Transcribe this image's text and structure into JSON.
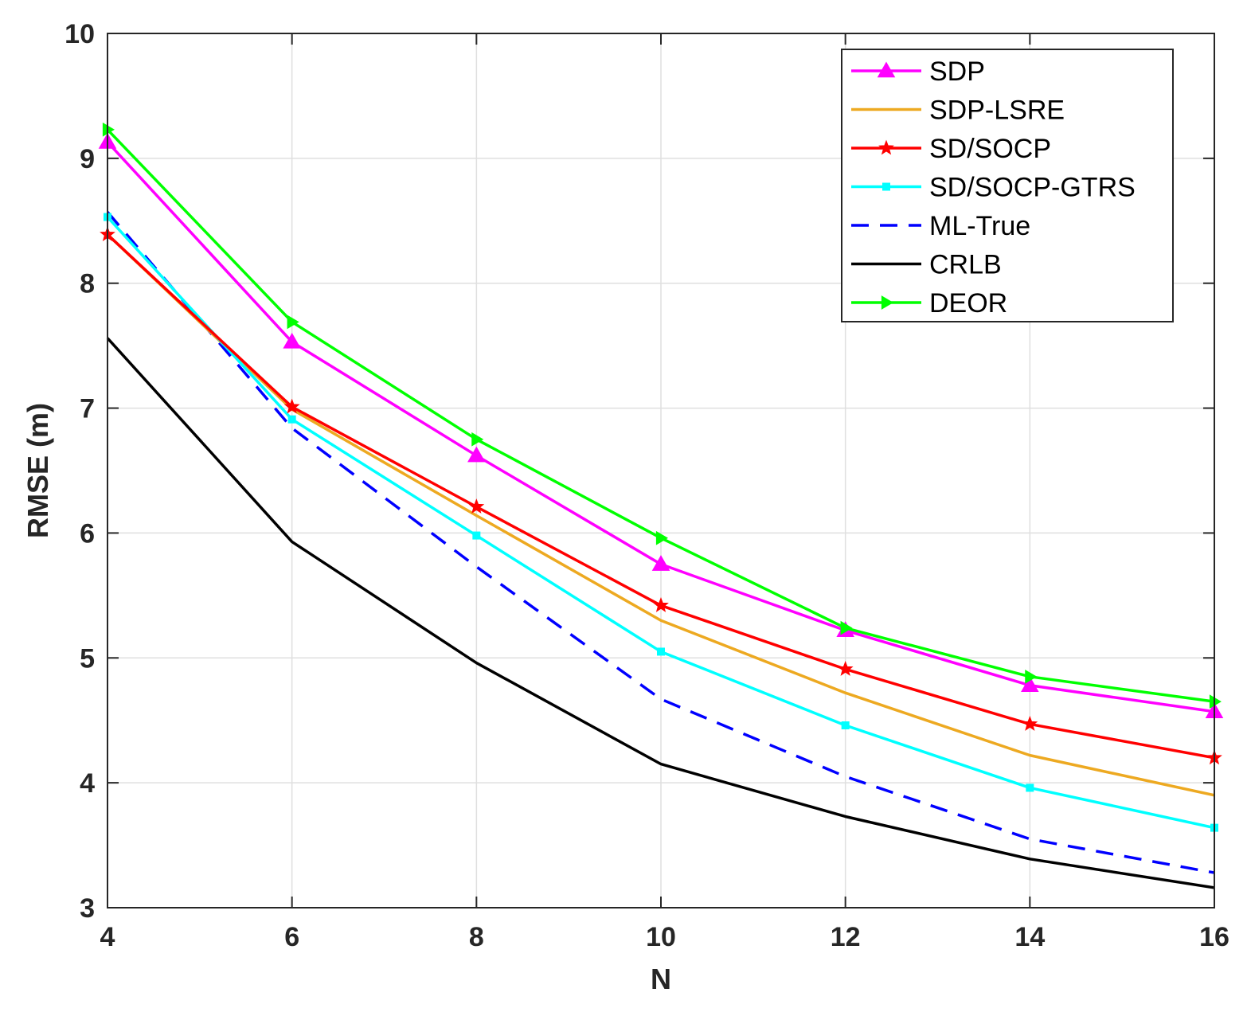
{
  "chart_data": {
    "type": "line",
    "title": "",
    "xlabel": "N",
    "ylabel": "RMSE (m)",
    "xlim": [
      4,
      16
    ],
    "ylim": [
      3,
      10
    ],
    "xticks": [
      4,
      6,
      8,
      10,
      12,
      14,
      16
    ],
    "yticks": [
      3,
      4,
      5,
      6,
      7,
      8,
      9,
      10
    ],
    "grid": true,
    "legend_position": "top-right",
    "x": [
      4,
      6,
      8,
      10,
      12,
      14,
      16
    ],
    "series": [
      {
        "name": "SDP",
        "color": "#ff00ff",
        "marker": "triangle-up",
        "dash": "solid",
        "values": [
          9.13,
          7.53,
          6.62,
          5.75,
          5.22,
          4.78,
          4.57
        ]
      },
      {
        "name": "SDP-LSRE",
        "color": "#eda921",
        "marker": "none",
        "dash": "solid",
        "values": [
          8.39,
          6.99,
          6.14,
          5.3,
          4.72,
          4.22,
          3.9
        ]
      },
      {
        "name": "SD/SOCP",
        "color": "#ff0000",
        "marker": "star",
        "dash": "solid",
        "values": [
          8.39,
          7.01,
          6.21,
          5.42,
          4.91,
          4.47,
          4.2
        ]
      },
      {
        "name": "SD/SOCP-GTRS",
        "color": "#00ffff",
        "marker": "square",
        "dash": "solid",
        "values": [
          8.53,
          6.91,
          5.98,
          5.05,
          4.46,
          3.96,
          3.64
        ]
      },
      {
        "name": "ML-True",
        "color": "#0000ff",
        "marker": "none",
        "dash": "dashed",
        "values": [
          8.57,
          6.84,
          5.73,
          4.67,
          4.05,
          3.55,
          3.28
        ]
      },
      {
        "name": "CRLB",
        "color": "#000000",
        "marker": "none",
        "dash": "solid",
        "values": [
          7.56,
          5.93,
          4.96,
          4.15,
          3.73,
          3.39,
          3.16
        ]
      },
      {
        "name": "DEOR",
        "color": "#00ff00",
        "marker": "triangle-right",
        "dash": "solid",
        "values": [
          9.23,
          7.69,
          6.75,
          5.96,
          5.24,
          4.85,
          4.65
        ]
      }
    ]
  }
}
